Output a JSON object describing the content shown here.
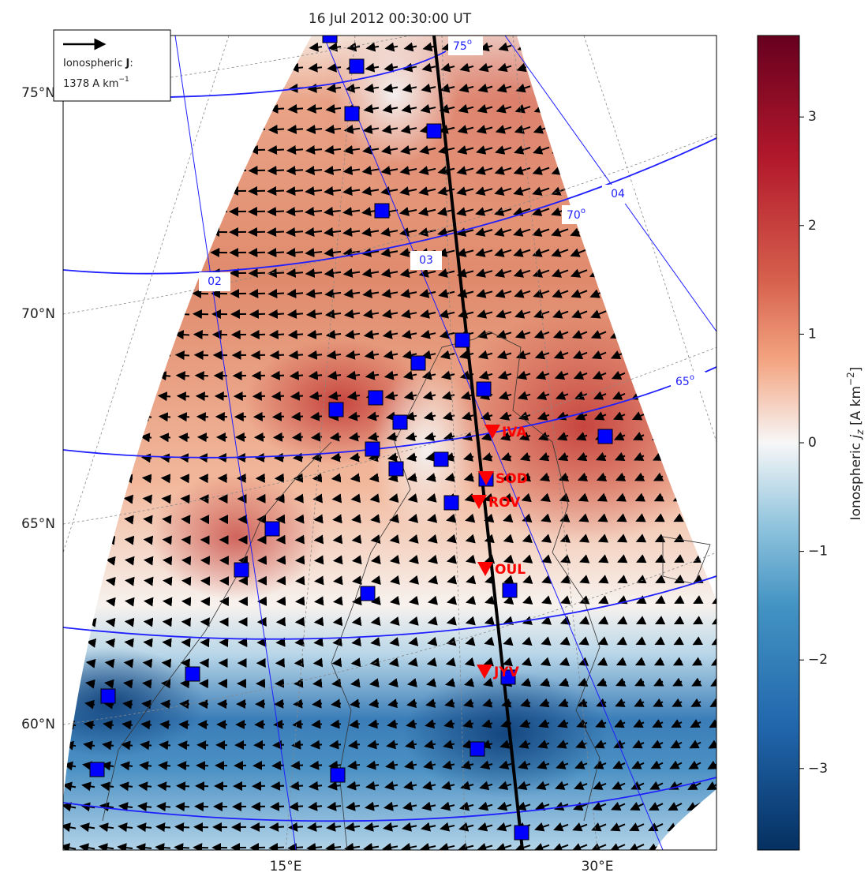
{
  "title": "16 Jul 2012 00:30:00 UT",
  "legend": {
    "prefix": "Ionospheric ",
    "symbol": "J",
    "suffix": ":",
    "scale": 1378,
    "unit": "A km",
    "unit_exponent": "−1"
  },
  "latitude_labels": [
    "75°N",
    "70°N",
    "65°N",
    "60°N"
  ],
  "longitude_labels": [
    "15°E",
    "30°E"
  ],
  "magnetic_latitude_labels": [
    {
      "value": "75",
      "sup": "o"
    },
    {
      "value": "70",
      "sup": "o"
    },
    {
      "value": "65",
      "sup": "o"
    }
  ],
  "mlt_labels": [
    "02",
    "03",
    "04"
  ],
  "stations": [
    "IVA",
    "SOD",
    "ROV",
    "OUL",
    "JYV"
  ],
  "colorbar": {
    "label_prefix": "Ionospheric ",
    "label_symbol": "j",
    "label_subscript": "z",
    "label_unit": " [A km",
    "label_exponent": "−2",
    "label_close": "]",
    "lim": [
      -3.75,
      3.75
    ],
    "ticks": [
      {
        "value": -3,
        "label": "−3"
      },
      {
        "value": -2,
        "label": "−2"
      },
      {
        "value": -1,
        "label": "−1"
      },
      0,
      1,
      2,
      3
    ]
  }
}
